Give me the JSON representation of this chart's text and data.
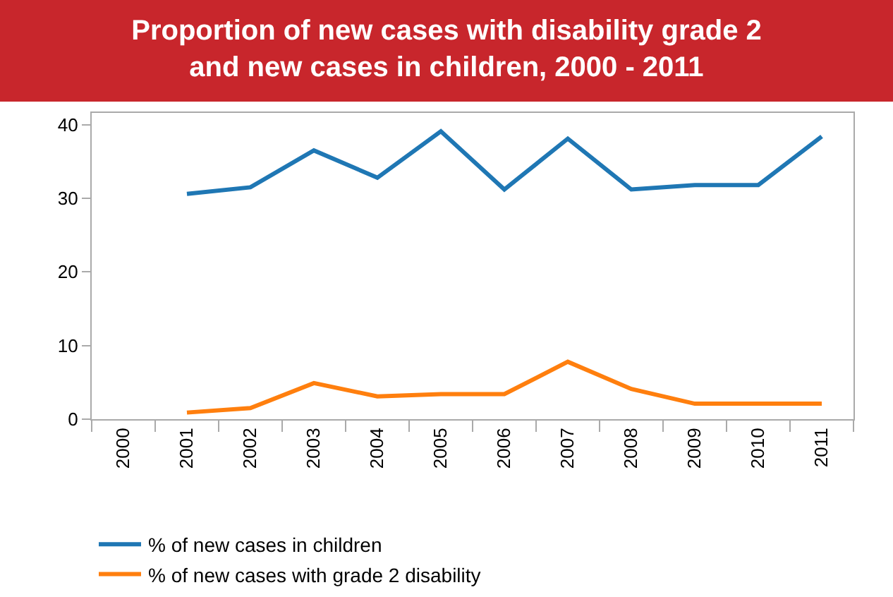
{
  "chart_data": {
    "type": "line",
    "title": "Proportion of new cases with disability grade 2\nand new cases in children, 2000 - 2011",
    "categories": [
      "2000",
      "2001",
      "2002",
      "2003",
      "2004",
      "2005",
      "2006",
      "2007",
      "2008",
      "2009",
      "2010",
      "2011"
    ],
    "series": [
      {
        "name": "% of new cases in children",
        "color": "#1f77b4",
        "values": [
          null,
          30.6,
          31.5,
          36.5,
          32.8,
          39.1,
          31.2,
          38.1,
          31.2,
          31.8,
          31.8,
          38.4
        ]
      },
      {
        "name": "% of new cases with grade 2 disability",
        "color": "#ff7f0e",
        "values": [
          null,
          0.9,
          1.5,
          4.9,
          3.1,
          3.4,
          3.4,
          7.8,
          4.1,
          2.1,
          2.1,
          2.1
        ]
      }
    ],
    "ylim": [
      0,
      41.6
    ],
    "yticks": [
      0,
      10,
      20,
      30,
      40
    ],
    "legend": "bottom",
    "marker": "none",
    "line_style": "solid"
  }
}
